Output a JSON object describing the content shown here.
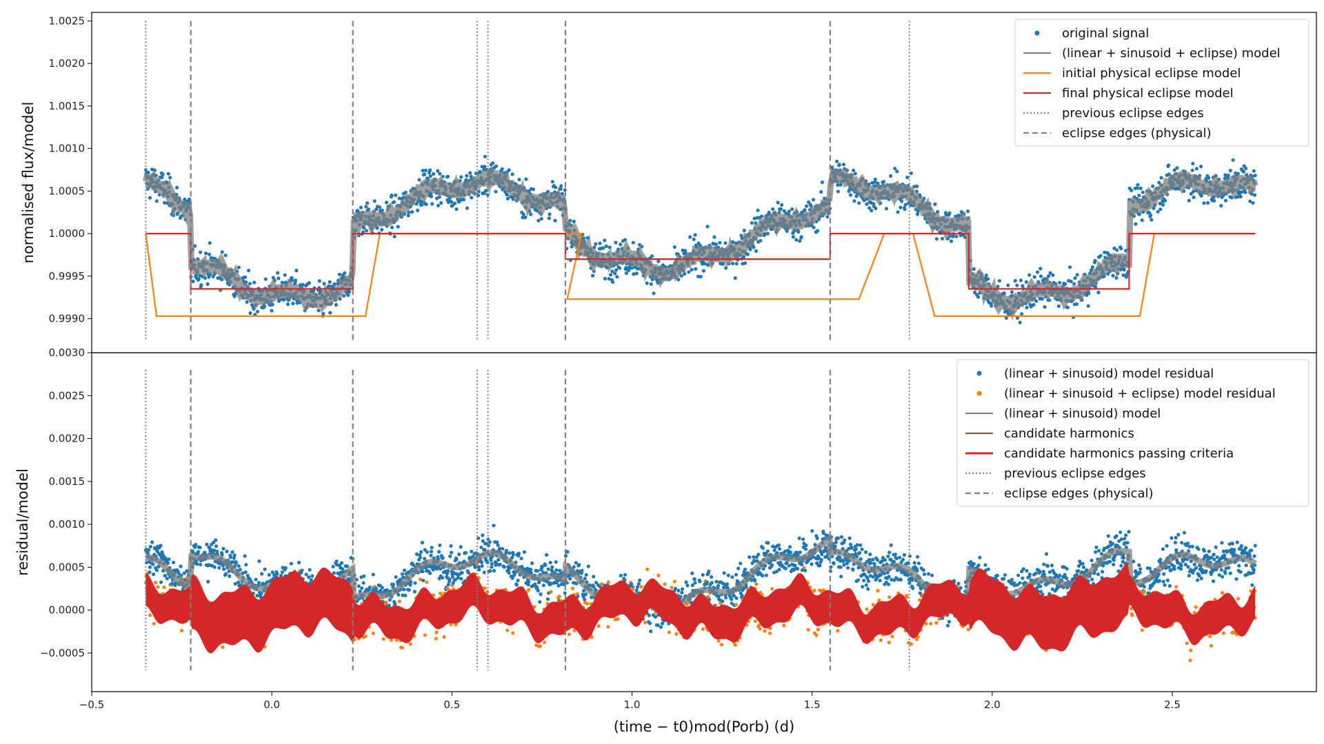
{
  "chart_data": [
    {
      "type": "scatter",
      "panel": "top",
      "ylabel": "normalised flux/model",
      "xlim": [
        -0.5,
        2.9
      ],
      "ylim": [
        0.9986,
        1.0026
      ],
      "yticks": [
        "0.9990",
        "0.9995",
        "1.0000",
        "1.0005",
        "1.0010",
        "1.0015",
        "1.0020",
        "1.0025"
      ],
      "ytick_values": [
        0.999,
        0.9995,
        1.0,
        1.0005,
        1.001,
        1.0015,
        1.002,
        1.0025
      ],
      "legend_position": "top-right",
      "series": [
        {
          "name": "original signal",
          "kind": "scatter",
          "color": "#1f77b4"
        },
        {
          "name": "(linear + sinusoid + eclipse) model",
          "kind": "line",
          "color": "#7f7f7f"
        },
        {
          "name": "initial physical eclipse model",
          "kind": "line",
          "color": "#ff7f0e",
          "points": [
            [
              -0.35,
              1.0
            ],
            [
              -0.32,
              0.99903
            ],
            [
              0.26,
              0.99903
            ],
            [
              0.3,
              1.0
            ],
            [
              0.86,
              1.0
            ],
            [
              0.82,
              0.99923
            ],
            [
              1.63,
              0.99923
            ],
            [
              1.7,
              1.0
            ],
            [
              1.78,
              1.0
            ],
            [
              1.84,
              0.99903
            ],
            [
              2.41,
              0.99903
            ],
            [
              2.45,
              1.0
            ],
            [
              2.73,
              1.0
            ]
          ]
        },
        {
          "name": "final physical eclipse model",
          "kind": "line",
          "color": "#d62728",
          "points": [
            [
              -0.35,
              1.0
            ],
            [
              -0.225,
              1.0
            ],
            [
              -0.225,
              0.99935
            ],
            [
              0.225,
              0.99935
            ],
            [
              0.225,
              1.0
            ],
            [
              0.815,
              1.0
            ],
            [
              0.815,
              0.9997
            ],
            [
              1.55,
              0.9997
            ],
            [
              1.55,
              1.0
            ],
            [
              1.935,
              1.0
            ],
            [
              1.935,
              0.99935
            ],
            [
              2.38,
              0.99935
            ],
            [
              2.38,
              1.0
            ],
            [
              2.73,
              1.0
            ]
          ]
        },
        {
          "name": "previous eclipse edges",
          "kind": "vline-dotted",
          "color": "#7f7f7f",
          "x": [
            -0.35,
            0.57,
            0.6,
            1.77
          ]
        },
        {
          "name": "eclipse edges (physical)",
          "kind": "vline-dashed",
          "color": "#7f7f7f",
          "x": [
            -0.225,
            0.225,
            0.815,
            1.55
          ]
        }
      ]
    },
    {
      "type": "scatter",
      "panel": "bottom",
      "xlabel": "(time − t0)mod(Porb) (d)",
      "ylabel": "residual/model",
      "xlim": [
        -0.5,
        2.9
      ],
      "ylim": [
        -0.00095,
        0.003
      ],
      "xticks": [
        "−0.5",
        "0.0",
        "0.5",
        "1.0",
        "1.5",
        "2.0",
        "2.5"
      ],
      "xtick_values": [
        -0.5,
        0.0,
        0.5,
        1.0,
        1.5,
        2.0,
        2.5
      ],
      "yticks": [
        "−0.0005",
        "0.0000",
        "0.0005",
        "0.0010",
        "0.0015",
        "0.0020",
        "0.0025",
        "0.0030"
      ],
      "ytick_values": [
        -0.0005,
        0.0,
        0.0005,
        0.001,
        0.0015,
        0.002,
        0.0025,
        0.003
      ],
      "legend_position": "top-right",
      "series": [
        {
          "name": "(linear + sinusoid) model residual",
          "kind": "scatter",
          "color": "#1f77b4"
        },
        {
          "name": "(linear + sinusoid + eclipse) model residual",
          "kind": "scatter",
          "color": "#ff7f0e"
        },
        {
          "name": "(linear + sinusoid) model",
          "kind": "line",
          "color": "#7f7f7f"
        },
        {
          "name": "candidate harmonics",
          "kind": "line",
          "color": "#8c564b"
        },
        {
          "name": "candidate harmonics passing criteria",
          "kind": "band",
          "color": "#d62728"
        },
        {
          "name": "previous eclipse edges",
          "kind": "vline-dotted",
          "color": "#7f7f7f",
          "x": [
            -0.35,
            0.57,
            0.6,
            1.77
          ]
        },
        {
          "name": "eclipse edges (physical)",
          "kind": "vline-dashed",
          "color": "#7f7f7f",
          "x": [
            -0.225,
            0.225,
            0.815,
            1.55
          ]
        }
      ]
    }
  ]
}
